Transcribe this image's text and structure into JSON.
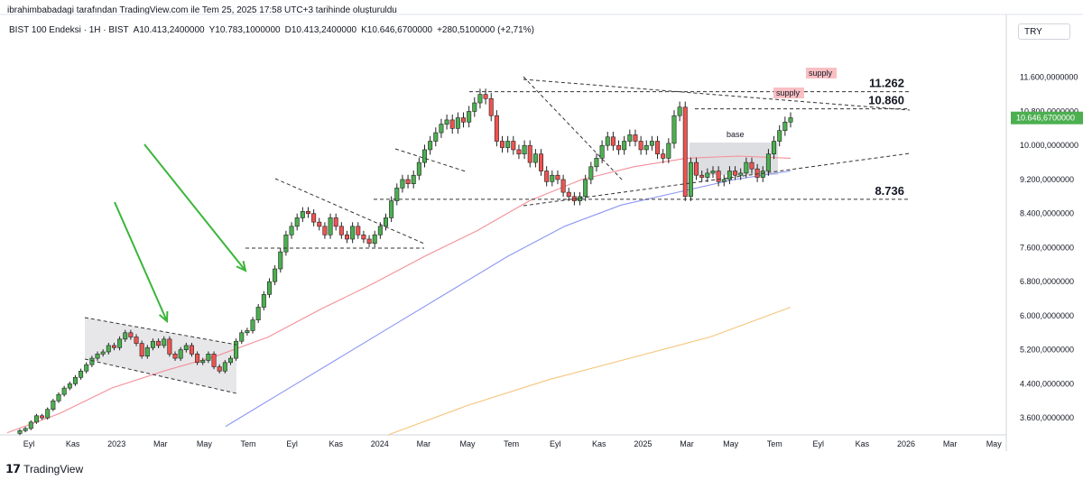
{
  "header": {
    "caption": "ibrahimbabadagi tarafından TradingView.com ile Tem 25, 2025 17:58 UTC+3 tarihinde oluşturuldu",
    "symbol": "BIST 100 Endeksi · 1H · BIST",
    "open": "A10.413,2400000",
    "high": "Y10.783,1000000",
    "low": "D10.413,2400000",
    "close": "K10.646,6700000",
    "change": "+280,5100000 (+2,71%)",
    "currency": "TRY"
  },
  "footer": {
    "brand": "TradingView"
  },
  "colors": {
    "up": "#4caf50",
    "down": "#ef5350",
    "ma_red": "#f48f9a",
    "ma_blue": "#8c96f5",
    "ma_orange": "#f5c57a",
    "accent": "#26a69a",
    "text": "#131722"
  },
  "chart_data": {
    "type": "candlestick",
    "title": "BIST 100 Endeksi · 1H · BIST",
    "ylim": [
      3200,
      12400
    ],
    "y_ticks": [
      3600,
      4400,
      5200,
      6000,
      6800,
      7600,
      8400,
      9200,
      10000,
      10800,
      11600
    ],
    "y_tick_labels": [
      "3.600,0000000",
      "4.400,0000000",
      "5.200,0000000",
      "6.000,0000000",
      "6.800,0000000",
      "7.600,0000000",
      "8.400,0000000",
      "9.200,0000000",
      "10.000,0000000",
      "10.800,0000000",
      "11.600,0000000"
    ],
    "x_ticks": [
      "Eyl",
      "Kas",
      "2023",
      "Mar",
      "May",
      "Tem",
      "Eyl",
      "Kas",
      "2024",
      "Mar",
      "May",
      "Tem",
      "Eyl",
      "Kas",
      "2025",
      "Mar",
      "May",
      "Tem",
      "Eyl",
      "Kas",
      "2026",
      "Mar",
      "May"
    ],
    "x_range": [
      0,
      1090
    ],
    "last_price_label": "10.646,6700000",
    "last_price": 10646.67,
    "close_series": [
      3300,
      3350,
      3500,
      3650,
      3600,
      3800,
      4000,
      4150,
      4300,
      4400,
      4550,
      4700,
      4850,
      5000,
      5100,
      5150,
      5300,
      5250,
      5450,
      5600,
      5500,
      5350,
      5050,
      5250,
      5400,
      5300,
      5450,
      5100,
      5000,
      5200,
      5300,
      5100,
      4900,
      4950,
      5100,
      4800,
      4700,
      4900,
      5000,
      5400,
      5600,
      5650,
      5900,
      6200,
      6500,
      6800,
      7100,
      7500,
      7900,
      8100,
      8300,
      8450,
      8400,
      8200,
      8100,
      7900,
      8300,
      8100,
      7900,
      7800,
      8100,
      7900,
      7800,
      7700,
      7900,
      8100,
      8300,
      8700,
      9000,
      9200,
      9100,
      9300,
      9600,
      9900,
      10100,
      10300,
      10500,
      10600,
      10400,
      10650,
      10550,
      10800,
      11000,
      11200,
      11100,
      10700,
      10100,
      9950,
      10100,
      9900,
      9800,
      10000,
      9600,
      9800,
      9400,
      9150,
      9300,
      9200,
      8900,
      8800,
      8700,
      8800,
      9200,
      9500,
      9700,
      10000,
      10200,
      10000,
      9900,
      10100,
      10250,
      10100,
      9900,
      10000,
      10100,
      9800,
      9700,
      10050,
      10700,
      10900,
      8800,
      9600,
      9300,
      9250,
      9350,
      9400,
      9150,
      9200,
      9400,
      9300,
      9350,
      9600,
      9450,
      9250,
      9400,
      9800,
      10100,
      10350,
      10550,
      10650
    ],
    "moving_averages": [
      {
        "name": "MA-50",
        "color": "#f48f9a",
        "values": [
          3250,
          3700,
          4300,
          4700,
          5050,
          5500,
          6150,
          6750,
          7400,
          8000,
          8700,
          9200,
          9500,
          9700,
          9750,
          9700
        ]
      },
      {
        "name": "MA-100",
        "color": "#8c96f5",
        "values": [
          3400,
          4200,
          5000,
          5800,
          6600,
          7400,
          8100,
          8600,
          8900,
          9200,
          9400
        ]
      },
      {
        "name": "MA-200",
        "color": "#f5c57a",
        "values": [
          3200,
          3900,
          4500,
          5000,
          5500,
          6200
        ]
      }
    ],
    "annotations": {
      "levels": [
        {
          "label": "11.262",
          "value": 11262
        },
        {
          "label": "10.860",
          "value": 10860
        },
        {
          "label": "8.736",
          "value": 8736
        }
      ],
      "zones": [
        {
          "label": "supply",
          "value": 11262
        },
        {
          "label": "supply",
          "value": 10860
        },
        {
          "label": "base",
          "value": 9650
        }
      ]
    }
  }
}
